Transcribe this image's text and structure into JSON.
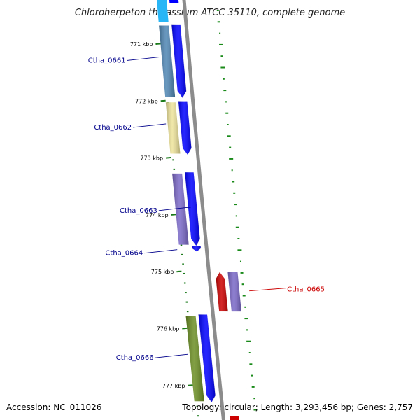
{
  "title": "Chloroherpeton thalassium ATCC 35110, complete genome",
  "footer": {
    "accession": "Accession: NC_011026",
    "summary": "Topology: circular; Length: 3,293,456 bp; Genes: 2,757"
  },
  "colors": {
    "backbone": "#8c8c8c",
    "cds": "#0000ff",
    "tick": "#1a7a1a",
    "gc": "#1a8a1a",
    "label_forward": "#00008b",
    "label_reverse": "#cc0000"
  },
  "scale": {
    "ticks": [
      {
        "kbp": 771,
        "label": "771 kbp"
      },
      {
        "kbp": 772,
        "label": "772 kbp"
      },
      {
        "kbp": 773,
        "label": "773 kbp"
      },
      {
        "kbp": 774,
        "label": "774 kbp"
      },
      {
        "kbp": 775,
        "label": "775 kbp"
      },
      {
        "kbp": 776,
        "label": "776 kbp"
      },
      {
        "kbp": 777,
        "label": "777 kbp"
      }
    ]
  },
  "genes": [
    {
      "id": "Ctha_0661",
      "label": "Ctha_0661",
      "strand": "+",
      "start_kbp": 770.65,
      "end_kbp": 771.95,
      "cog_color": "#4f86b3"
    },
    {
      "id": "Ctha_0662",
      "label": "Ctha_0662",
      "strand": "+",
      "start_kbp": 772.0,
      "end_kbp": 772.95,
      "cog_color": "#ede39a"
    },
    {
      "id": "Ctha_0663",
      "label": "Ctha_0663",
      "strand": "+",
      "start_kbp": 773.25,
      "end_kbp": 774.55,
      "cog_color": "#7b68c8"
    },
    {
      "id": "Ctha_0664",
      "label": "Ctha_0664",
      "strand": "+",
      "start_kbp": 774.55,
      "end_kbp": 774.65,
      "cog_color": null
    },
    {
      "id": "Ctha_0665",
      "label": "Ctha_0665",
      "strand": "-",
      "start_kbp": 775.0,
      "end_kbp": 775.7,
      "cog_color": "#ff0000"
    },
    {
      "id": "Ctha_0666",
      "label": "Ctha_0666",
      "strand": "+",
      "start_kbp": 775.75,
      "end_kbp": 777.3,
      "cog_color": "#6b8e23"
    }
  ]
}
